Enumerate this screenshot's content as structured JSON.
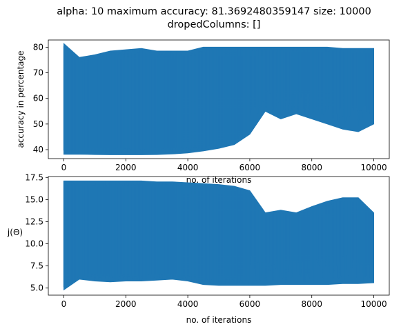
{
  "title_line1": "alpha: 10 maximum accuracy: 81.3692480359147 size: 10000",
  "title_line2": "dropedColumns: []",
  "chart_data": [
    {
      "type": "line",
      "title": "alpha: 10 maximum accuracy: 81.3692480359147 size: 10000 dropedColumns: []",
      "xlabel": "no. of iterations",
      "ylabel": "accuracy in percentage",
      "xlim": [
        -500,
        10500
      ],
      "ylim": [
        36.5,
        82.8
      ],
      "xticks": [
        0,
        2000,
        4000,
        6000,
        8000,
        10000
      ],
      "xtick_labels": [
        "0",
        "2000",
        "4000",
        "6000",
        "8000",
        "10000"
      ],
      "yticks": [
        40,
        50,
        60,
        70,
        80
      ],
      "ytick_labels": [
        "40",
        "50",
        "60",
        "70",
        "80"
      ],
      "grid": false,
      "color": "#1f77b4",
      "series": [
        {
          "x": [
            0,
            500,
            1000,
            1500,
            2000,
            2500,
            3000,
            3500,
            4000,
            4500,
            5000,
            5500,
            6000,
            6500,
            7000,
            7500,
            8000,
            8500,
            9000,
            9500,
            10000
          ],
          "upper": [
            81.4,
            76,
            77,
            78.5,
            79,
            79.5,
            78.5,
            78.5,
            78.5,
            80,
            80,
            80,
            80,
            80,
            80,
            80,
            80,
            80,
            79.5,
            79.5,
            79.5
          ],
          "lower": [
            38.2,
            38.2,
            38.1,
            38.0,
            38.0,
            38.0,
            38.1,
            38.3,
            38.7,
            39.5,
            40.5,
            42,
            46,
            55,
            52,
            54,
            52,
            50,
            48,
            47,
            50
          ]
        }
      ]
    },
    {
      "type": "line",
      "title": "",
      "xlabel": "no. of iterations",
      "ylabel": "j(Θ)",
      "xlim": [
        -500,
        10500
      ],
      "ylim": [
        4.2,
        17.6
      ],
      "xticks": [
        0,
        2000,
        4000,
        6000,
        8000,
        10000
      ],
      "xtick_labels": [
        "0",
        "2000",
        "4000",
        "6000",
        "8000",
        "10000"
      ],
      "yticks": [
        5.0,
        7.5,
        10.0,
        12.5,
        15.0,
        17.5
      ],
      "ytick_labels": [
        "5.0",
        "7.5",
        "10.0",
        "12.5",
        "15.0",
        "17.5"
      ],
      "grid": false,
      "color": "#1f77b4",
      "series": [
        {
          "x": [
            0,
            500,
            1000,
            1500,
            2000,
            2500,
            3000,
            3500,
            4000,
            4500,
            5000,
            5500,
            6000,
            6500,
            7000,
            7500,
            8000,
            8500,
            9000,
            9500,
            10000
          ],
          "upper": [
            17.1,
            17.1,
            17.1,
            17.1,
            17.1,
            17.1,
            17.0,
            17.0,
            16.9,
            16.8,
            16.7,
            16.5,
            16.0,
            13.5,
            13.8,
            13.5,
            14.2,
            14.8,
            15.2,
            15.2,
            13.5
          ],
          "lower": [
            4.8,
            6.0,
            5.8,
            5.7,
            5.8,
            5.8,
            5.9,
            6.0,
            5.8,
            5.4,
            5.3,
            5.3,
            5.3,
            5.3,
            5.4,
            5.4,
            5.4,
            5.4,
            5.5,
            5.5,
            5.6
          ]
        }
      ]
    }
  ]
}
